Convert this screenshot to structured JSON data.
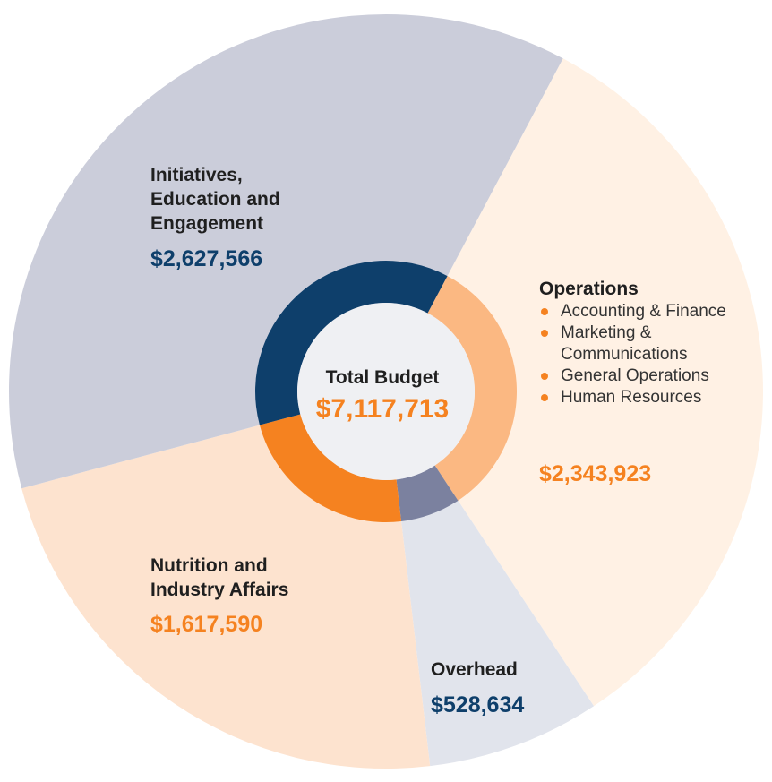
{
  "chart_data": {
    "type": "donut",
    "title": "Total Budget",
    "total_label": "Total Budget",
    "total_value": "$7,117,713",
    "total_number": 7117713,
    "categories": [
      "Operations",
      "Overhead",
      "Nutrition and Industry Affairs",
      "Initiatives, Education and Engagement"
    ],
    "values": [
      2343923,
      528634,
      1617590,
      2627566
    ],
    "series": [
      {
        "key": "ops",
        "name_lines": [
          "Operations"
        ],
        "value": 2343923,
        "value_label": "$2,343,923",
        "outer_color": "#fff1e4",
        "inner_color": "#fbb882",
        "value_color": "#f58220",
        "sub_items": [
          "Accounting & Finance",
          "Marketing & Communications",
          "General Operations",
          "Human Resources"
        ]
      },
      {
        "key": "overhead",
        "name_lines": [
          "Overhead"
        ],
        "value": 528634,
        "value_label": "$528,634",
        "outer_color": "#e1e4ec",
        "inner_color": "#7b819f",
        "value_color": "#0e3f6b"
      },
      {
        "key": "nutrition",
        "name_lines": [
          "Nutrition and",
          "Industry Affairs"
        ],
        "value": 1617590,
        "value_label": "$1,617,590",
        "outer_color": "#fde3cf",
        "inner_color": "#f58220",
        "value_color": "#f58220"
      },
      {
        "key": "initiatives",
        "name_lines": [
          "Initiatives,",
          "Education and",
          "Engagement"
        ],
        "value": 2627566,
        "value_label": "$2,627,566",
        "outer_color": "#cbcdda",
        "inner_color": "#0e3f6b",
        "value_color": "#0e3f6b"
      }
    ],
    "start_angle_deg": 28,
    "direction": "clockwise",
    "center_fill": "#eff0f3",
    "bullet_color": "#f58220",
    "total_color": "#f58220"
  }
}
